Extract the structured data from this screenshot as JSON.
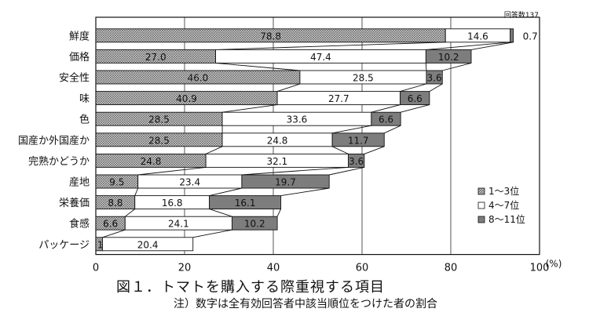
{
  "respondents_label": "回答数137",
  "chart_data": {
    "type": "bar",
    "orientation": "horizontal",
    "stacked": true,
    "categories": [
      "鮮度",
      "価格",
      "安全性",
      "味",
      "色",
      "国産か外国産か",
      "完熟かどうか",
      "産地",
      "栄養価",
      "食感",
      "パッケージ"
    ],
    "series": [
      {
        "name": "1～3位",
        "values": [
          78.8,
          27.0,
          46.0,
          40.9,
          28.5,
          28.5,
          24.8,
          9.5,
          8.8,
          6.6,
          1.5
        ]
      },
      {
        "name": "4～7位",
        "values": [
          14.6,
          47.4,
          28.5,
          27.7,
          33.6,
          24.8,
          32.1,
          23.4,
          16.8,
          24.1,
          20.4
        ]
      },
      {
        "name": "8～11位",
        "values": [
          0.7,
          10.2,
          3.6,
          6.6,
          6.6,
          11.7,
          3.6,
          19.7,
          16.1,
          10.2,
          null
        ]
      }
    ],
    "series_labels": [
      [
        "78.8",
        "27.0",
        "46.0",
        "40.9",
        "28.5",
        "28.5",
        "24.8",
        "9.5",
        "8.8",
        "6.6",
        "1.5"
      ],
      [
        "14.6",
        "47.4",
        "28.5",
        "27.7",
        "33.6",
        "24.8",
        "32.1",
        "23.4",
        "16.8",
        "24.1",
        "20.4"
      ],
      [
        "0.7",
        "10.2",
        "3.6",
        "6.6",
        "6.6",
        "11.7",
        "3.6",
        "19.7",
        "16.1",
        "10.2",
        ""
      ]
    ],
    "xlim": [
      0,
      100
    ],
    "xticks": [
      0,
      20,
      40,
      60,
      80,
      100
    ],
    "xunit": "(%)",
    "grid": "vertical",
    "legend_position": "bottom-right",
    "colors": {
      "1～3位": "#d8d8d8",
      "4～7位": "#ffffff",
      "8～11位": "#7d7d7d"
    }
  },
  "caption": {
    "title": "図１．トマトを購入する際重視する項目",
    "note": "注）数字は全有効回答者中該当順位をつけた者の割合"
  }
}
